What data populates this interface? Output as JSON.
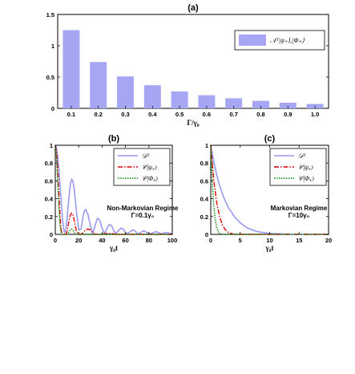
{
  "chart_data": [
    {
      "id": "a",
      "panel_label": "(a)",
      "type": "bar",
      "categories": [
        "0.1",
        "0.2",
        "0.3",
        "0.4",
        "0.5",
        "0.6",
        "0.7",
        "0.8",
        "0.9",
        "1.0"
      ],
      "values": [
        1.25,
        0.74,
        0.51,
        0.37,
        0.27,
        0.21,
        0.16,
        0.12,
        0.09,
        0.07
      ],
      "ylim": [
        0,
        1.5
      ],
      "yticks": [
        0,
        0.5,
        1,
        1.5
      ],
      "ytick_labels": [
        "0",
        "0.5",
        "1",
        "1.5"
      ],
      "xlabel": "Γ/γ₀",
      "ylabel": "",
      "legend": [
        {
          "label": "𝒩ᵀ|ψ₊⟩,|Φ₊⟩",
          "color": "#a6a6f5"
        }
      ],
      "legend_placement": "top-right",
      "bar_color": "#a6a6f5"
    },
    {
      "id": "b",
      "panel_label": "(b)",
      "type": "line",
      "xlim": [
        0,
        100
      ],
      "ylim": [
        0,
        1
      ],
      "xticks": [
        0,
        20,
        40,
        60,
        80,
        100
      ],
      "yticks": [
        0,
        0.2,
        0.4,
        0.6,
        0.8,
        1
      ],
      "ytick_labels": [
        "0",
        "0.2",
        "0.4",
        "0.6",
        "0.8",
        "1"
      ],
      "xlabel": "γ₀t",
      "annotation": [
        "Non-Markovian Regime",
        "Γ=0.1γ₀"
      ],
      "legend_placement": "top-right",
      "series": [
        {
          "name": "𝒟ᵀ",
          "color": "#9999ee",
          "dash": "",
          "x": [
            0,
            1,
            2,
            3,
            4,
            5,
            6,
            7,
            8,
            9,
            10,
            11,
            12,
            13,
            14,
            15,
            16,
            17,
            18,
            20,
            22,
            24,
            25,
            26,
            28,
            30,
            32,
            34,
            36,
            38,
            40,
            42,
            44,
            46,
            48,
            50,
            52,
            54,
            56,
            58,
            60,
            62,
            64,
            66,
            68,
            70,
            72,
            74,
            76,
            78,
            80,
            82,
            84,
            86,
            88,
            90,
            92,
            94,
            96,
            98,
            100
          ],
          "y": [
            1,
            0.97,
            0.88,
            0.74,
            0.56,
            0.37,
            0.2,
            0.07,
            0.02,
            0.06,
            0.17,
            0.32,
            0.46,
            0.57,
            0.62,
            0.6,
            0.52,
            0.4,
            0.27,
            0.05,
            0.06,
            0.22,
            0.27,
            0.28,
            0.22,
            0.1,
            0.01,
            0.1,
            0.18,
            0.16,
            0.07,
            0.01,
            0.06,
            0.11,
            0.1,
            0.04,
            0.01,
            0.04,
            0.07,
            0.06,
            0.02,
            0.01,
            0.03,
            0.05,
            0.04,
            0.01,
            0.01,
            0.03,
            0.04,
            0.02,
            0.01,
            0.01,
            0.02,
            0.03,
            0.02,
            0.01,
            0.01,
            0.02,
            0.02,
            0.01,
            0.01
          ]
        },
        {
          "name": "𝒞|ψ₊⟩",
          "color": "#dd0000",
          "dash": "6,2,1.5,2",
          "x": [
            0,
            1,
            2,
            3,
            4,
            5,
            6,
            7,
            8,
            9,
            10,
            11,
            12,
            13,
            14,
            15,
            16,
            17,
            18,
            20,
            22,
            24,
            26,
            28,
            30,
            32,
            34,
            36,
            40,
            44,
            48,
            52,
            56,
            60,
            70,
            80,
            90,
            100
          ],
          "y": [
            1,
            0.93,
            0.74,
            0.48,
            0.22,
            0.05,
            0,
            0,
            0,
            0,
            0.03,
            0.1,
            0.17,
            0.22,
            0.24,
            0.22,
            0.17,
            0.1,
            0.04,
            0,
            0,
            0.02,
            0.05,
            0.06,
            0.05,
            0.02,
            0,
            0,
            0,
            0.01,
            0.01,
            0,
            0,
            0,
            0,
            0,
            0,
            0
          ]
        },
        {
          "name": "𝒞|Φ₊⟩",
          "color": "#008800",
          "dash": "1.5,1.5",
          "x": [
            0,
            1,
            2,
            3,
            4,
            5,
            6,
            8,
            10,
            11,
            12,
            13,
            14,
            15,
            16,
            17,
            18,
            20,
            30,
            40,
            60,
            80,
            100
          ],
          "y": [
            1,
            0.88,
            0.6,
            0.3,
            0.1,
            0.02,
            0,
            0,
            0,
            0.01,
            0.03,
            0.05,
            0.06,
            0.05,
            0.03,
            0.01,
            0,
            0,
            0,
            0,
            0,
            0,
            0
          ]
        }
      ]
    },
    {
      "id": "c",
      "panel_label": "(c)",
      "type": "line",
      "xlim": [
        0,
        20
      ],
      "ylim": [
        0,
        1
      ],
      "xticks": [
        0,
        5,
        10,
        15,
        20
      ],
      "yticks": [
        0,
        0.2,
        0.4,
        0.6,
        0.8,
        1
      ],
      "ytick_labels": [
        "0",
        "0.2",
        "0.4",
        "0.6",
        "0.8",
        "1"
      ],
      "xlabel": "γ₀t",
      "annotation": [
        "Markovian Regime",
        "Γ=10γ₀"
      ],
      "legend_placement": "top-right",
      "series": [
        {
          "name": "𝒟ᵀ",
          "color": "#9999ee",
          "dash": "",
          "x": [
            0,
            0.5,
            1,
            1.5,
            2,
            2.5,
            3,
            4,
            5,
            6,
            7,
            8,
            9,
            10,
            12,
            14,
            16,
            18,
            20
          ],
          "y": [
            1,
            0.82,
            0.67,
            0.55,
            0.45,
            0.37,
            0.3,
            0.2,
            0.13,
            0.08,
            0.05,
            0.03,
            0.02,
            0.01,
            0.005,
            0,
            0,
            0,
            0
          ]
        },
        {
          "name": "𝒞|ψ₊⟩",
          "color": "#dd0000",
          "dash": "6,2,1.5,2",
          "x": [
            0,
            0.5,
            1,
            1.5,
            2,
            2.5,
            3,
            4,
            5,
            6,
            8,
            10,
            15,
            20
          ],
          "y": [
            1,
            0.62,
            0.36,
            0.2,
            0.1,
            0.05,
            0.02,
            0,
            0,
            0,
            0,
            0,
            0,
            0
          ]
        },
        {
          "name": "𝒞|Φ₊⟩",
          "color": "#008800",
          "dash": "1.5,1.5",
          "x": [
            0,
            0.25,
            0.5,
            0.75,
            1,
            1.25,
            1.5,
            2,
            2.5,
            3,
            5,
            10,
            20
          ],
          "y": [
            1,
            0.6,
            0.33,
            0.17,
            0.08,
            0.03,
            0.01,
            0,
            0,
            0,
            0,
            0,
            0
          ]
        }
      ]
    }
  ]
}
